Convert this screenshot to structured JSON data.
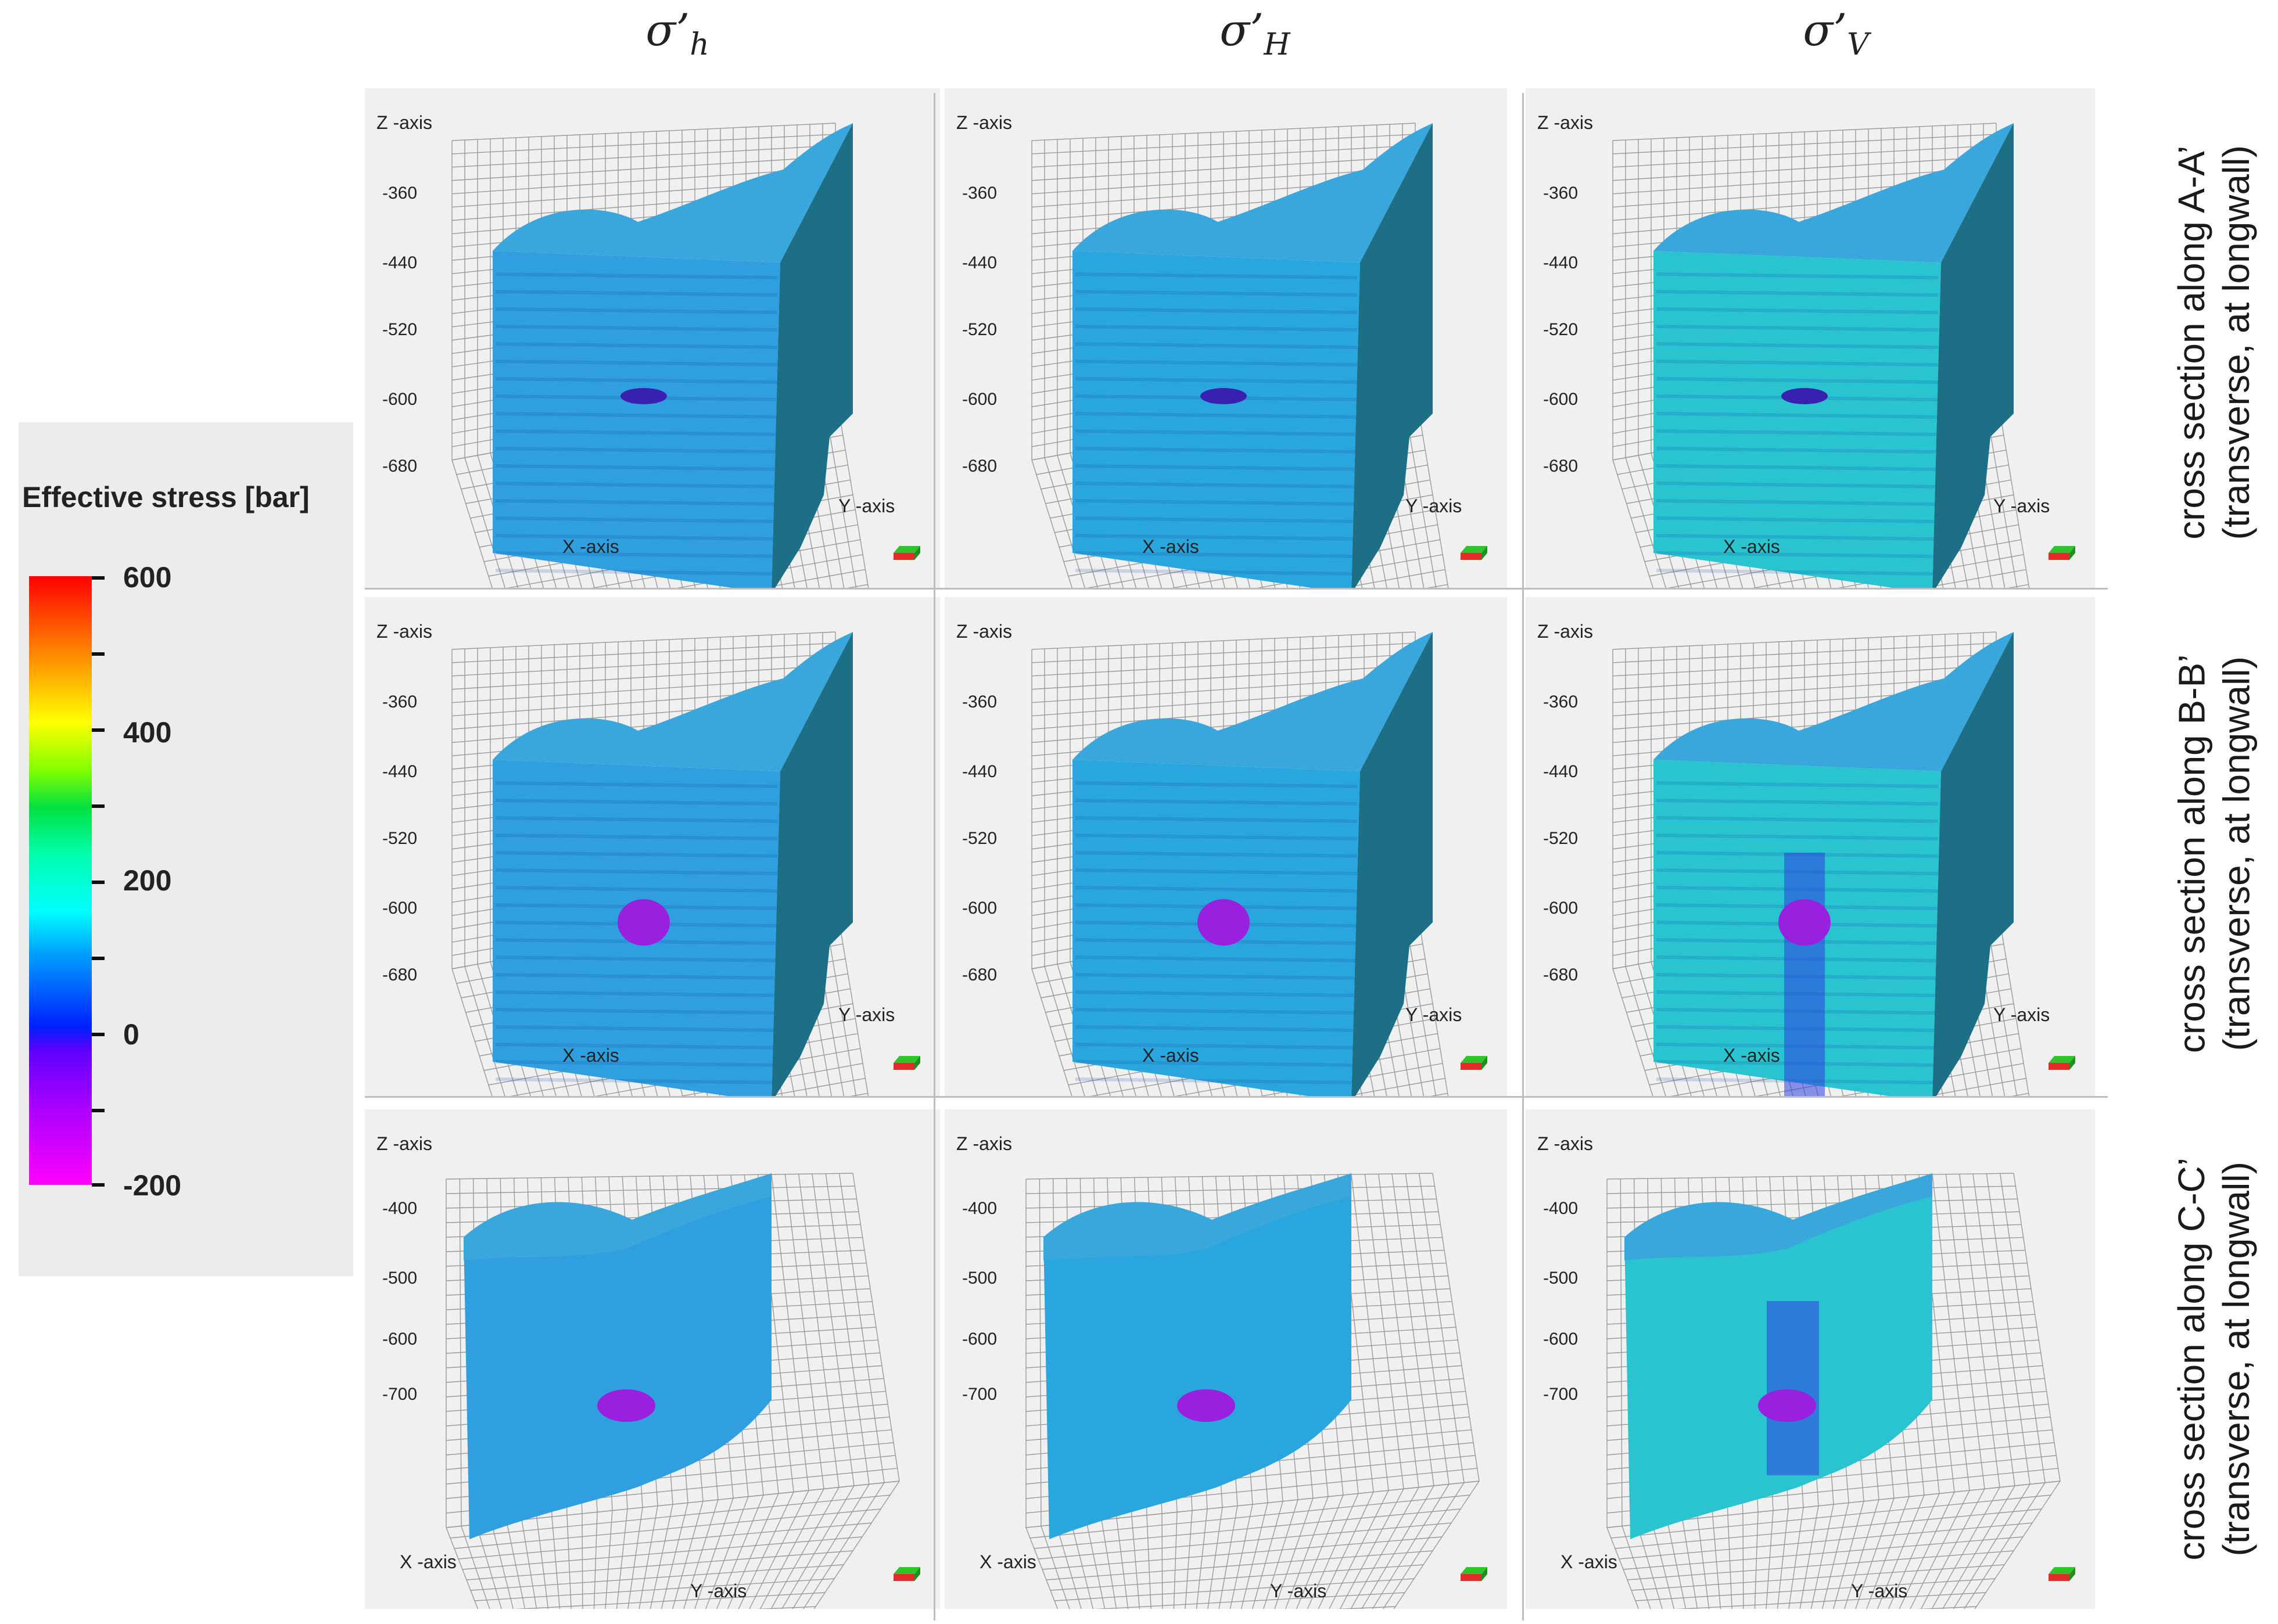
{
  "column_headers": [
    {
      "sym": "σ’",
      "sub": "h"
    },
    {
      "sym": "σ’",
      "sub": "H"
    },
    {
      "sym": "σ’",
      "sub": "V"
    }
  ],
  "row_labels": [
    {
      "line1": "cross section along A-A’",
      "line2": "(transverse, at longwall)"
    },
    {
      "line1": "cross section along B-B’",
      "line2": "(transverse, at longwall)"
    },
    {
      "line1": "cross section along C-C’",
      "line2": "(transverse, at longwall)"
    }
  ],
  "legend": {
    "title": "Effective stress [bar]",
    "labels": [
      "600",
      "400",
      "200",
      "0",
      "-200"
    ]
  },
  "axis_titles": {
    "z": "Z -axis",
    "x": "X -axis",
    "y": "Y -axis"
  },
  "z_ticks": {
    "row1": [
      "-360",
      "-440",
      "-520",
      "-600",
      "-680"
    ],
    "row2": [
      "-360",
      "-440",
      "-520",
      "-600",
      "-680"
    ],
    "row3": [
      "-400",
      "-500",
      "-600",
      "-700"
    ]
  },
  "colors": {
    "sigma_h": "#2f9fe0",
    "sigma_H": "#2aa6df",
    "sigma_V": "#29c4d0",
    "side_face": "#1d6f85",
    "top_face": "#3aa7dc",
    "panel_bg": "#f0f0f0",
    "cavity": "#9a20e0",
    "low_zone": "#3040e0"
  }
}
